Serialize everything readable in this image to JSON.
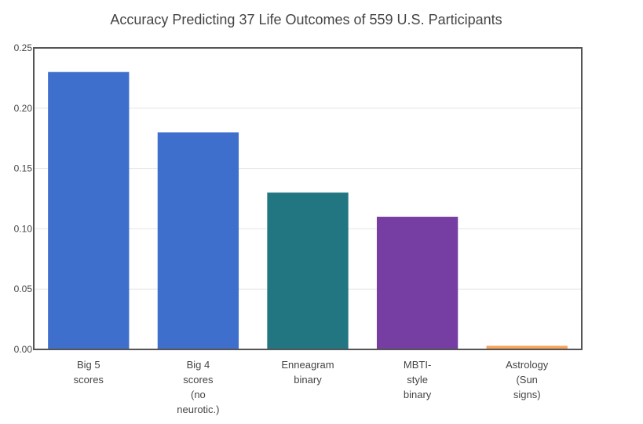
{
  "chart_data": {
    "type": "bar",
    "title": "Accuracy Predicting 37 Life Outcomes of 559 U.S. Participants",
    "xlabel": "",
    "ylabel": "",
    "categories": [
      [
        "Big 5",
        "scores"
      ],
      [
        "Big 4",
        "scores",
        "(no",
        "neurotic.)"
      ],
      [
        "Enneagram",
        "binary"
      ],
      [
        "MBTI-",
        "style",
        "binary"
      ],
      [
        "Astrology",
        "(Sun",
        "signs)"
      ]
    ],
    "values": [
      0.23,
      0.18,
      0.13,
      0.11,
      0.003
    ],
    "colors": [
      "#3f6fcc",
      "#3f6fcc",
      "#217682",
      "#763ea2",
      "#f6a35b"
    ],
    "ylim": [
      0,
      0.25
    ],
    "yticks": [
      "0.00",
      "0.05",
      "0.10",
      "0.15",
      "0.20",
      "0.25"
    ],
    "grid": true,
    "legend": "none"
  }
}
